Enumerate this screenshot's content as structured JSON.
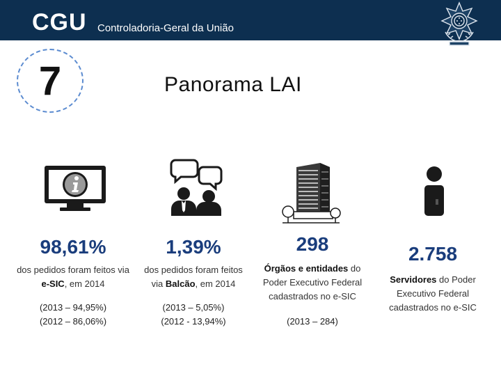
{
  "header": {
    "logo": "CGU",
    "org_name": "Controladoria-Geral da União",
    "seal_icon": "brazil-coat-of-arms-icon"
  },
  "slide": {
    "number": "7",
    "title": "Panorama LAI"
  },
  "stats": [
    {
      "icon": "computer-info-icon",
      "value": "98,61%",
      "desc_pre": "dos pedidos foram  feitos via ",
      "desc_bold": "e-SIC",
      "desc_post": ", em 2014",
      "notes": [
        "(2013 – 94,95%)",
        "(2012 – 86,06%)"
      ]
    },
    {
      "icon": "people-talking-icon",
      "value": "1,39%",
      "desc_pre": "dos pedidos foram feitos via ",
      "desc_bold": "Balcão",
      "desc_post": ",  em 2014",
      "notes": [
        "(2013 – 5,05%)",
        "(2012 - 13,94%)"
      ]
    },
    {
      "icon": "office-building-icon",
      "value": "298",
      "desc_bold": "Órgãos  e entidades",
      "desc_post": " do Poder Executivo  Federal cadastrados  no e-SIC",
      "notes": [
        "(2013 – 284)"
      ]
    },
    {
      "icon": "information-person-icon",
      "value": "2.758",
      "desc_bold": "Servidores",
      "desc_post": "  do Poder Executivo  Federal cadastrados  no e-SIC",
      "notes": []
    }
  ],
  "colors": {
    "header_bg": "#0d2f50",
    "value_blue": "#1a3d7c",
    "circle_dash": "#5b8bd0"
  }
}
